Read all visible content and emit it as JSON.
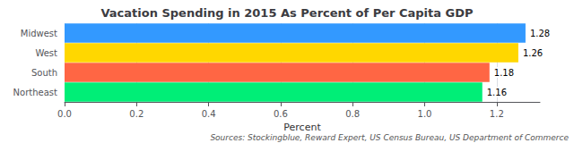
{
  "chart_data": {
    "type": "bar",
    "orientation": "horizontal",
    "title": "Vacation Spending in 2015 As Percent of Per Capita GDP",
    "categories": [
      "Northeast",
      "South",
      "West",
      "Midwest"
    ],
    "values": [
      1.16,
      1.18,
      1.26,
      1.28
    ],
    "value_labels": [
      "1.16",
      "1.18",
      "1.26",
      "1.28"
    ],
    "data_labels": true,
    "colors": [
      "#00EE77",
      "#FF6644",
      "#FFD700",
      "#3399FF"
    ],
    "xlabel": "Percent",
    "xlim": [
      0.0,
      1.32
    ],
    "xticks": [
      {
        "value": 0,
        "label": "0.0"
      },
      0.2,
      0.4,
      0.6,
      0.8,
      {
        "value": 1,
        "label": "1.0"
      },
      1.2
    ],
    "grid": true,
    "annotations": [
      "Sources: Stockingblue, Reward Expert, US Census Bureau, US Department of Commerce"
    ]
  }
}
